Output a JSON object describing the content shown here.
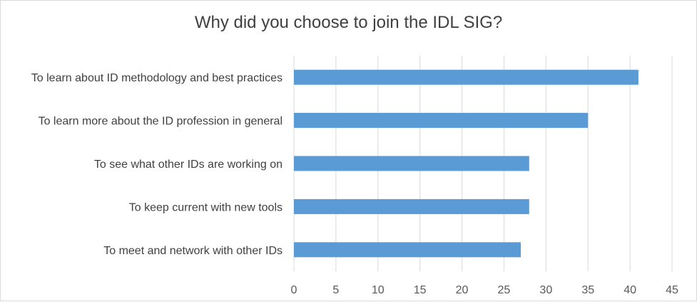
{
  "chart_data": {
    "type": "bar",
    "orientation": "horizontal",
    "title": "Why did you choose to join the IDL SIG?",
    "categories": [
      "To learn about ID methodology and best practices",
      "To learn more about the ID profession in general",
      "To see what other IDs are working on",
      "To keep current with new tools",
      "To meet and network with other IDs"
    ],
    "values": [
      41,
      35,
      28,
      28,
      27
    ],
    "xlim": [
      0,
      45
    ],
    "xticks": [
      0,
      5,
      10,
      15,
      20,
      25,
      30,
      35,
      40,
      45
    ],
    "grid": "vertical",
    "legend": "none",
    "bar_color": "#5b9bd5",
    "grid_color": "#d9d9d9"
  }
}
